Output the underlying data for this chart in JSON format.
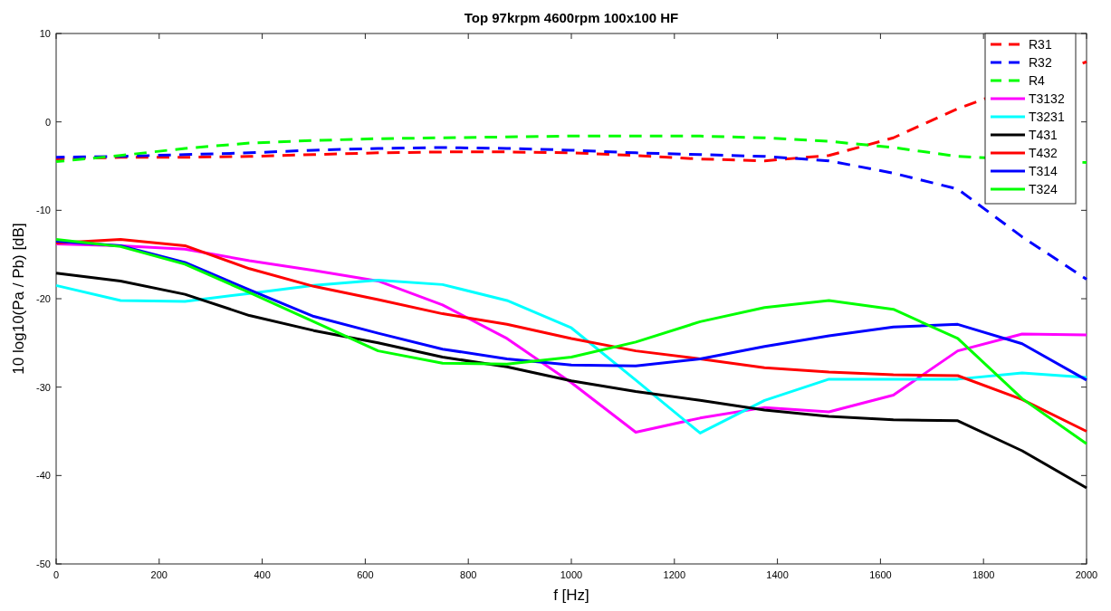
{
  "chart_data": {
    "type": "line",
    "title": "Top 97krpm 4600rpm 100x100 HF",
    "xlabel": "f [Hz]",
    "ylabel": "10 log10(Pa / Pb) [dB]",
    "x": [
      0,
      125,
      250,
      375,
      500,
      625,
      750,
      875,
      1000,
      1125,
      1250,
      1375,
      1500,
      1625,
      1750,
      1875,
      2000
    ],
    "xlim": [
      0,
      2000
    ],
    "ylim": [
      -50,
      10
    ],
    "xticks": [
      0,
      200,
      400,
      600,
      800,
      1000,
      1200,
      1400,
      1600,
      1800,
      2000
    ],
    "yticks": [
      -50,
      -40,
      -30,
      -20,
      -10,
      0,
      10
    ],
    "grid": false,
    "legend": "top right",
    "marker": "none",
    "series": [
      {
        "name": "R31",
        "color": "#ff0000",
        "line_style": "dashed",
        "values": [
          -4.2,
          -4.0,
          -4.0,
          -3.9,
          -3.7,
          -3.5,
          -3.4,
          -3.4,
          -3.5,
          -3.8,
          -4.2,
          -4.4,
          -3.8,
          -1.8,
          1.5,
          null,
          6.8
        ]
      },
      {
        "name": "R32",
        "color": "#0000ff",
        "line_style": "dashed",
        "values": [
          -4.0,
          -3.9,
          -3.7,
          -3.5,
          -3.2,
          -3.0,
          -2.9,
          -3.0,
          -3.2,
          -3.5,
          -3.7,
          -3.9,
          -4.4,
          -5.8,
          -7.6,
          -13,
          -17.8
        ]
      },
      {
        "name": "R4",
        "color": "#00ff00",
        "line_style": "dashed",
        "values": [
          -4.5,
          -3.8,
          -3.0,
          -2.4,
          -2.1,
          -1.9,
          -1.8,
          -1.7,
          -1.6,
          -1.6,
          -1.6,
          -1.8,
          -2.2,
          -2.9,
          -3.9,
          null,
          -4.6
        ]
      },
      {
        "name": "T3132",
        "color": "#ff00ff",
        "line_style": "solid",
        "values": [
          -13.8,
          -14.0,
          -14.4,
          -15.7,
          -16.8,
          -18.0,
          -20.7,
          -24.5,
          -29.5,
          -35.1,
          -33.5,
          -32.3,
          -32.8,
          -30.9,
          -25.9,
          -24.0,
          -24.1
        ]
      },
      {
        "name": "T3231",
        "color": "#00ffff",
        "line_style": "solid",
        "values": [
          -18.5,
          -20.2,
          -20.3,
          -19.4,
          -18.5,
          -17.9,
          -18.4,
          -20.2,
          -23.3,
          -29.2,
          -35.2,
          -31.5,
          -29.1,
          -29.1,
          -29.1,
          -28.4,
          -28.9
        ]
      },
      {
        "name": "T431",
        "color": "#000000",
        "line_style": "solid",
        "values": [
          -17.1,
          -18.0,
          -19.5,
          -21.9,
          -23.6,
          -25.0,
          -26.6,
          -27.7,
          -29.3,
          -30.5,
          -31.5,
          -32.6,
          -33.3,
          -33.7,
          -33.8,
          -37.2,
          -41.4
        ]
      },
      {
        "name": "T432",
        "color": "#ff0000",
        "line_style": "solid",
        "values": [
          -13.7,
          -13.3,
          -14.0,
          -16.6,
          -18.6,
          -20.1,
          -21.7,
          -22.9,
          -24.5,
          -25.9,
          -26.8,
          -27.8,
          -28.3,
          -28.6,
          -28.7,
          -31.4,
          -35.0
        ]
      },
      {
        "name": "T314",
        "color": "#0000ff",
        "line_style": "solid",
        "values": [
          -13.5,
          -14.0,
          -15.9,
          -19.0,
          -22.0,
          -23.9,
          -25.7,
          -26.8,
          -27.5,
          -27.6,
          -26.8,
          -25.4,
          -24.2,
          -23.2,
          -22.9,
          -25.1,
          -29.2
        ]
      },
      {
        "name": "T324",
        "color": "#00ff00",
        "line_style": "solid",
        "values": [
          -13.3,
          -14.1,
          -16.1,
          -19.3,
          -22.6,
          -25.9,
          -27.3,
          -27.4,
          -26.6,
          -24.9,
          -22.6,
          -21.0,
          -20.2,
          -21.2,
          -24.5,
          -31.3,
          -36.4
        ]
      }
    ]
  }
}
